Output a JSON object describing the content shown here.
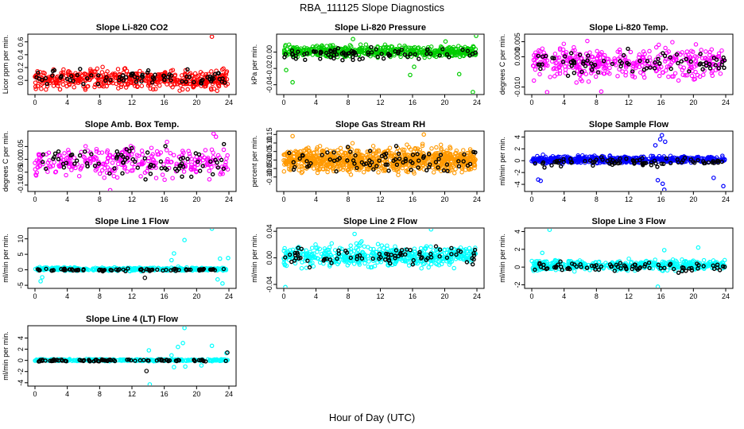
{
  "figure": {
    "title": "RBA_111125  Slope Diagnostics",
    "xlabel": "Hour of Day (UTC)"
  },
  "chart_data": [
    {
      "type": "scatter",
      "title": "Slope Li-820 CO2",
      "ylabel": "Licor ppm per min.",
      "xlim": [
        0,
        24
      ],
      "xticks": [
        0,
        4,
        8,
        12,
        16,
        20,
        24
      ],
      "yticks": [
        "0.0",
        "0.2",
        "0.4",
        "0.6"
      ],
      "ytick_values": [
        0,
        0.2,
        0.4,
        0.6
      ],
      "ylim": [
        -0.22,
        0.72
      ],
      "series": [
        {
          "name": "",
          "color": "#ff0000",
          "center": 0.02,
          "spread": 0.13,
          "n": 460,
          "outliers": [
            [
              21.9,
              0.68
            ],
            [
              18.9,
              -0.14
            ],
            [
              3.1,
              -0.14
            ],
            [
              19.7,
              -0.09
            ]
          ]
        },
        {
          "name": "",
          "color": "#000000",
          "center": 0.03,
          "spread": 0.11,
          "n": 80,
          "outliers": []
        }
      ]
    },
    {
      "type": "scatter",
      "title": "Slope Li-820 Pressure",
      "ylabel": "kPa per min.",
      "xlim": [
        0,
        24
      ],
      "xticks": [
        0,
        4,
        8,
        12,
        16,
        20,
        24
      ],
      "yticks": [
        "-0.04",
        "-0.02",
        "0.00"
      ],
      "ytick_values": [
        -0.04,
        -0.02,
        0.0
      ],
      "ylim": [
        -0.052,
        0.022
      ],
      "series": [
        {
          "name": "",
          "color": "#00cc00",
          "center": 0.001,
          "spread": 0.006,
          "n": 520,
          "outliers": [
            [
              1.1,
              -0.037
            ],
            [
              0.3,
              -0.022
            ],
            [
              23.5,
              -0.049
            ],
            [
              23.9,
              0.02
            ],
            [
              8.6,
              0.016
            ],
            [
              16.2,
              -0.018
            ],
            [
              20.1,
              0.013
            ],
            [
              15.7,
              -0.028
            ],
            [
              21.8,
              -0.027
            ]
          ]
        },
        {
          "name": "",
          "color": "#000000",
          "center": -0.002,
          "spread": 0.007,
          "n": 80,
          "outliers": []
        }
      ]
    },
    {
      "type": "scatter",
      "title": "Slope Li-820 Temp.",
      "ylabel": "degrees C per min.",
      "xlim": [
        0,
        24
      ],
      "xticks": [
        0,
        4,
        8,
        12,
        16,
        20,
        24
      ],
      "yticks": [
        "-0.010",
        "0.000",
        "0.005"
      ],
      "ytick_values": [
        -0.01,
        0.0,
        0.005
      ],
      "ylim": [
        -0.0125,
        0.0075
      ],
      "series": [
        {
          "name": "",
          "color": "#ff00ff",
          "center": -0.002,
          "spread": 0.0045,
          "n": 380,
          "outliers": [
            [
              8.6,
              -0.0115
            ],
            [
              1.9,
              -0.0117
            ]
          ]
        },
        {
          "name": "",
          "color": "#000000",
          "center": -0.002,
          "spread": 0.003,
          "n": 80,
          "outliers": []
        }
      ]
    },
    {
      "type": "scatter",
      "title": "Slope Amb. Box Temp.",
      "ylabel": "degrees C per min.",
      "xlim": [
        0,
        24
      ],
      "xticks": [
        0,
        4,
        8,
        12,
        16,
        20,
        24
      ],
      "yticks": [
        "-0.10",
        "-0.05",
        "0.00",
        "0.05"
      ],
      "ytick_values": [
        -0.1,
        -0.05,
        0.0,
        0.05
      ],
      "ylim": [
        -0.125,
        0.11
      ],
      "series": [
        {
          "name": "",
          "color": "#ff00ff",
          "center": -0.01,
          "spread": 0.05,
          "n": 300,
          "outliers": [
            [
              22.1,
              0.1
            ],
            [
              22.4,
              0.088
            ],
            [
              9.3,
              -0.12
            ]
          ]
        },
        {
          "name": "",
          "color": "#000000",
          "center": -0.01,
          "spread": 0.055,
          "n": 80,
          "outliers": []
        }
      ]
    },
    {
      "type": "scatter",
      "title": "Slope Gas Stream RH",
      "ylabel": "percent per min.",
      "xlim": [
        0,
        24
      ],
      "xticks": [
        0,
        4,
        8,
        12,
        16,
        20,
        24
      ],
      "yticks": [
        "-0.10",
        "-0.05",
        "0.00",
        "0.05",
        "0.10",
        "0.15"
      ],
      "ytick_values": [
        -0.1,
        -0.05,
        0.0,
        0.05,
        0.1,
        0.15
      ],
      "ylim": [
        -0.185,
        0.17
      ],
      "series": [
        {
          "name": "",
          "color": "#ff9900",
          "center": 0.0,
          "spread": 0.06,
          "n": 900,
          "outliers": [
            [
              17.4,
              0.15
            ],
            [
              1.1,
              0.14
            ]
          ]
        },
        {
          "name": "",
          "color": "#000000",
          "center": 0.0,
          "spread": 0.07,
          "n": 80,
          "outliers": []
        }
      ]
    },
    {
      "type": "scatter",
      "title": "Slope Sample Flow",
      "ylabel": "ml/min per min.",
      "xlim": [
        0,
        24
      ],
      "xticks": [
        0,
        4,
        8,
        12,
        16,
        20,
        24
      ],
      "yticks": [
        "-4",
        "-2",
        "0",
        "2",
        "4"
      ],
      "ytick_values": [
        -4,
        -2,
        0,
        2,
        4
      ],
      "ylim": [
        -5.2,
        5.0
      ],
      "series": [
        {
          "name": "",
          "color": "#0000ff",
          "center": 0.2,
          "spread": 0.5,
          "n": 520,
          "outliers": [
            [
              16.1,
              4.3
            ],
            [
              15.9,
              3.6
            ],
            [
              16.5,
              3.2
            ],
            [
              15.3,
              2.6
            ],
            [
              16.2,
              -3.9
            ],
            [
              16.4,
              -4.9
            ],
            [
              1.1,
              -3.4
            ],
            [
              0.8,
              -3.2
            ],
            [
              22.5,
              -2.9
            ],
            [
              23.7,
              -4.3
            ],
            [
              15.6,
              -3.3
            ]
          ]
        },
        {
          "name": "",
          "color": "#000000",
          "center": -0.2,
          "spread": 0.7,
          "n": 80,
          "outliers": []
        }
      ]
    },
    {
      "type": "scatter",
      "title": "Slope Line 1 Flow",
      "ylabel": "ml/min per min.",
      "xlim": [
        0,
        24
      ],
      "xticks": [
        0,
        4,
        8,
        12,
        16,
        20,
        24
      ],
      "yticks": [
        "-5",
        "0",
        "5",
        "10"
      ],
      "ytick_values": [
        -5,
        0,
        5,
        10
      ],
      "ylim": [
        -6.0,
        13.5
      ],
      "series": [
        {
          "name": "",
          "color": "#00ffff",
          "center": 0.2,
          "spread": 0.5,
          "n": 340,
          "outliers": [
            [
              21.9,
              13.3
            ],
            [
              18.5,
              9.6
            ],
            [
              17.2,
              5.3
            ],
            [
              23.9,
              3.8
            ],
            [
              22.9,
              3.6
            ],
            [
              0.9,
              -2.4
            ],
            [
              0.7,
              -3.7
            ],
            [
              22.6,
              -3.1
            ],
            [
              23.2,
              -4.4
            ],
            [
              16.9,
              3.1
            ]
          ]
        },
        {
          "name": "",
          "color": "#000000",
          "center": 0.0,
          "spread": 0.35,
          "n": 80,
          "outliers": [
            [
              13.6,
              -2.6
            ]
          ]
        }
      ]
    },
    {
      "type": "scatter",
      "title": "Slope Line 2 Flow",
      "ylabel": "ml/min per min.",
      "xlim": [
        0,
        24
      ],
      "xticks": [
        0,
        4,
        8,
        12,
        16,
        20,
        24
      ],
      "yticks": [
        "-0.04",
        "0.00",
        "0.04"
      ],
      "ytick_values": [
        -0.04,
        0.0,
        0.04
      ],
      "ylim": [
        -0.046,
        0.045
      ],
      "series": [
        {
          "name": "",
          "color": "#00ffff",
          "center": 0.003,
          "spread": 0.014,
          "n": 520,
          "outliers": [
            [
              0.2,
              -0.044
            ],
            [
              18.3,
              0.043
            ],
            [
              8.8,
              0.036
            ]
          ]
        },
        {
          "name": "",
          "color": "#000000",
          "center": 0.003,
          "spread": 0.012,
          "n": 80,
          "outliers": []
        }
      ]
    },
    {
      "type": "scatter",
      "title": "Slope Line 3 Flow",
      "ylabel": "ml/min per min.",
      "xlim": [
        0,
        24
      ],
      "xticks": [
        0,
        4,
        8,
        12,
        16,
        20,
        24
      ],
      "yticks": [
        "-2",
        "0",
        "2",
        "4"
      ],
      "ytick_values": [
        -2,
        0,
        2,
        4
      ],
      "ylim": [
        -2.4,
        4.4
      ],
      "series": [
        {
          "name": "",
          "color": "#00ffff",
          "center": 0.2,
          "spread": 0.5,
          "n": 460,
          "outliers": [
            [
              2.2,
              4.2
            ],
            [
              20.6,
              2.2
            ],
            [
              15.6,
              -2.2
            ],
            [
              16.4,
              1.9
            ],
            [
              1.3,
              1.6
            ]
          ]
        },
        {
          "name": "",
          "color": "#000000",
          "center": 0.0,
          "spread": 0.5,
          "n": 80,
          "outliers": []
        }
      ]
    },
    {
      "type": "scatter",
      "title": "Slope Line 4 (LT) Flow",
      "ylabel": "ml/min per min.",
      "xlim": [
        0,
        24
      ],
      "xticks": [
        0,
        4,
        8,
        12,
        16,
        20,
        24
      ],
      "yticks": [
        "-4",
        "-2",
        "0",
        "2",
        "4"
      ],
      "ytick_values": [
        -4,
        -2,
        0,
        2,
        4
      ],
      "ylim": [
        -4.6,
        6.2
      ],
      "series": [
        {
          "name": "",
          "color": "#00ffff",
          "center": 0.05,
          "spread": 0.15,
          "n": 320,
          "outliers": [
            [
              18.5,
              5.8
            ],
            [
              18.3,
              3.1
            ],
            [
              17.7,
              2.4
            ],
            [
              14.1,
              1.8
            ],
            [
              21.9,
              2.6
            ],
            [
              14.2,
              -4.3
            ],
            [
              17.2,
              -1.2
            ],
            [
              18.6,
              -1.1
            ],
            [
              20.6,
              -0.9
            ],
            [
              16.9,
              0.9
            ],
            [
              23.7,
              1.3
            ]
          ]
        },
        {
          "name": "",
          "color": "#000000",
          "center": 0.0,
          "spread": 0.15,
          "n": 80,
          "outliers": [
            [
              13.8,
              -1.9
            ],
            [
              23.8,
              1.4
            ]
          ]
        }
      ]
    }
  ]
}
